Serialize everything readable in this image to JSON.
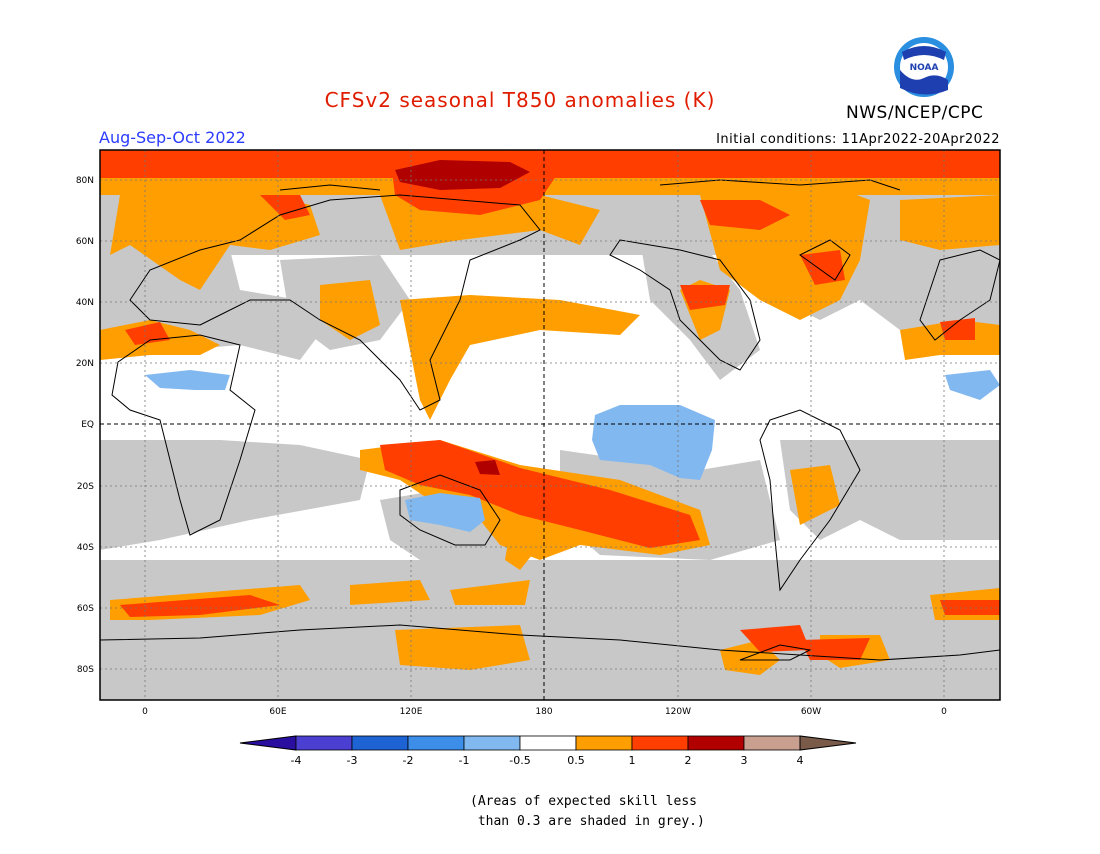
{
  "title": "CFSv2 seasonal T850 anomalies (K)",
  "season": "Aug-Sep-Oct 2022",
  "organization": "NWS/NCEP/CPC",
  "initial_conditions": "Initial conditions: 11Apr2022-20Apr2022",
  "logo": {
    "text": "NOAA",
    "icon": "noaa-logo"
  },
  "lon_labels": [
    "0",
    "60E",
    "120E",
    "180",
    "120W",
    "60W",
    "0"
  ],
  "lat_labels": [
    "80N",
    "60N",
    "40N",
    "20N",
    "EQ",
    "20S",
    "40S",
    "60S",
    "80S"
  ],
  "colorbar": {
    "labels": [
      "-4",
      "-3",
      "-2",
      "-1",
      "-0.5",
      "0.5",
      "1",
      "2",
      "3",
      "4"
    ],
    "colors": [
      "#2a0ea0",
      "#4a3fd0",
      "#1e63d4",
      "#3d8ee8",
      "#82b8f0",
      "#ffffff",
      "#ff9e00",
      "#ff3e00",
      "#b00000",
      "#c9a08f",
      "#7a5a48"
    ]
  },
  "note": "(Areas of expected skill less\n than 0.3 are shaded in grey.)",
  "colors": {
    "grey": "#c8c8c8",
    "orange": "#ff9e00",
    "red": "#ff3e00",
    "darkred": "#b00000",
    "lightblue": "#82b8f0"
  }
}
